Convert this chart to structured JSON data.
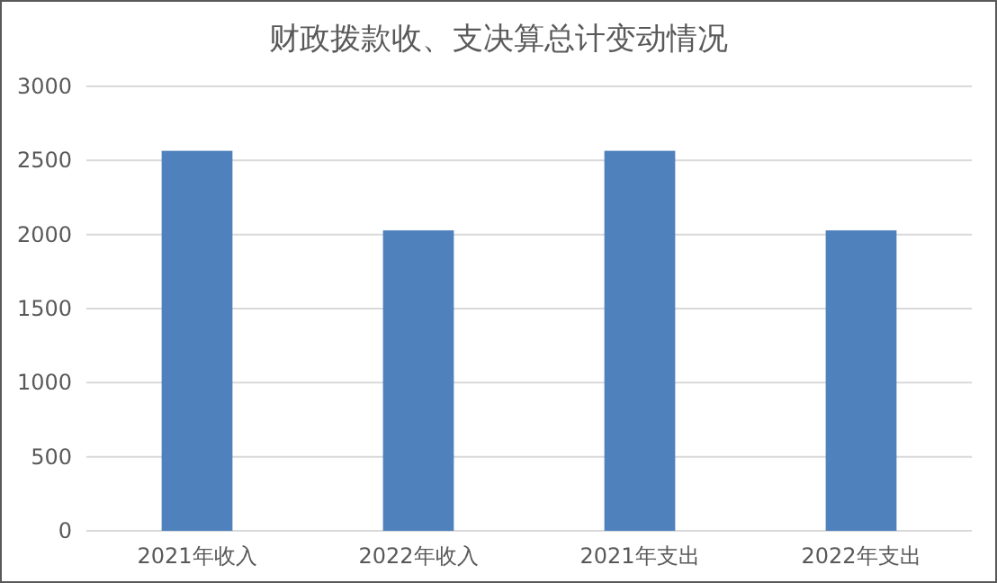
{
  "chart_data": {
    "type": "bar",
    "title": "财政拨款收、支决算总计变动情况",
    "categories": [
      "2021年收入",
      "2022年收入",
      "2021年支出",
      "2022年支出"
    ],
    "values": [
      2565,
      2028,
      2565,
      2028
    ],
    "color": "#4f81bd",
    "ylim": [
      0,
      3000
    ],
    "yticks": [
      0,
      500,
      1000,
      1500,
      2000,
      2500,
      3000
    ],
    "grid": "y"
  }
}
